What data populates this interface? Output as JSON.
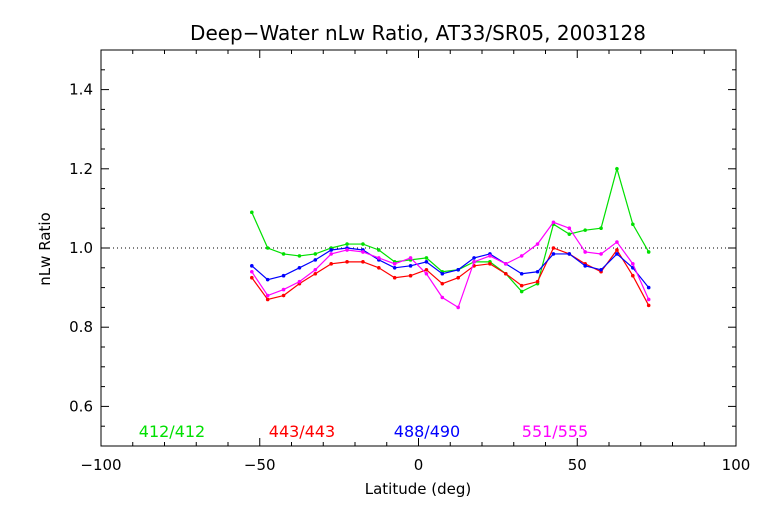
{
  "chart_data": {
    "type": "line",
    "title": "Deep−Water nLw Ratio, AT33/SR05, 2003128",
    "xlabel": "Latitude (deg)",
    "ylabel": "nLw Ratio",
    "xlim": [
      -100,
      100
    ],
    "ylim": [
      0.5,
      1.5
    ],
    "xticks": [
      -100,
      -50,
      0,
      50,
      100
    ],
    "xtick_labels": [
      "−100",
      "−50",
      "0",
      "50",
      "100"
    ],
    "yticks": [
      0.6,
      0.8,
      1.0,
      1.2,
      1.4
    ],
    "ytick_labels": [
      "0.6",
      "0.8",
      "1.0",
      "1.2",
      "1.4"
    ],
    "reference_line": 1.0,
    "grid": false,
    "legend_position": "bottom-inside",
    "x": [
      -52.5,
      -47.5,
      -42.5,
      -37.5,
      -32.5,
      -27.5,
      -22.5,
      -17.5,
      -12.5,
      -7.5,
      -2.5,
      2.5,
      7.5,
      12.5,
      17.5,
      22.5,
      27.5,
      32.5,
      37.5,
      42.5,
      47.5,
      52.5,
      57.5,
      62.5,
      67.5,
      72.5
    ],
    "series": [
      {
        "name": "412/412",
        "color": "#00e000",
        "values": [
          1.09,
          1.0,
          0.985,
          0.98,
          0.985,
          1.0,
          1.01,
          1.01,
          0.995,
          0.965,
          0.97,
          0.975,
          0.94,
          0.945,
          0.965,
          0.965,
          0.935,
          0.89,
          0.91,
          1.06,
          1.035,
          1.045,
          1.05,
          1.2,
          1.06,
          0.99
        ]
      },
      {
        "name": "443/443",
        "color": "#ff0000",
        "values": [
          0.925,
          0.87,
          0.88,
          0.91,
          0.935,
          0.96,
          0.965,
          0.965,
          0.95,
          0.925,
          0.93,
          0.945,
          0.91,
          0.925,
          0.955,
          0.96,
          0.935,
          0.905,
          0.915,
          1.0,
          0.985,
          0.96,
          0.94,
          0.995,
          0.93,
          0.855
        ]
      },
      {
        "name": "488/490",
        "color": "#0000ff",
        "values": [
          0.955,
          0.92,
          0.93,
          0.95,
          0.97,
          0.995,
          1.0,
          0.995,
          0.97,
          0.95,
          0.955,
          0.965,
          0.935,
          0.945,
          0.975,
          0.985,
          0.96,
          0.935,
          0.94,
          0.985,
          0.985,
          0.955,
          0.945,
          0.985,
          0.95,
          0.9
        ]
      },
      {
        "name": "551/555",
        "color": "#ff00ff",
        "values": [
          0.94,
          0.88,
          0.895,
          0.915,
          0.945,
          0.985,
          0.995,
          0.99,
          0.975,
          0.96,
          0.975,
          0.935,
          0.875,
          0.85,
          0.965,
          0.98,
          0.96,
          0.98,
          1.01,
          1.065,
          1.05,
          0.99,
          0.985,
          1.015,
          0.96,
          0.87
        ]
      }
    ]
  }
}
